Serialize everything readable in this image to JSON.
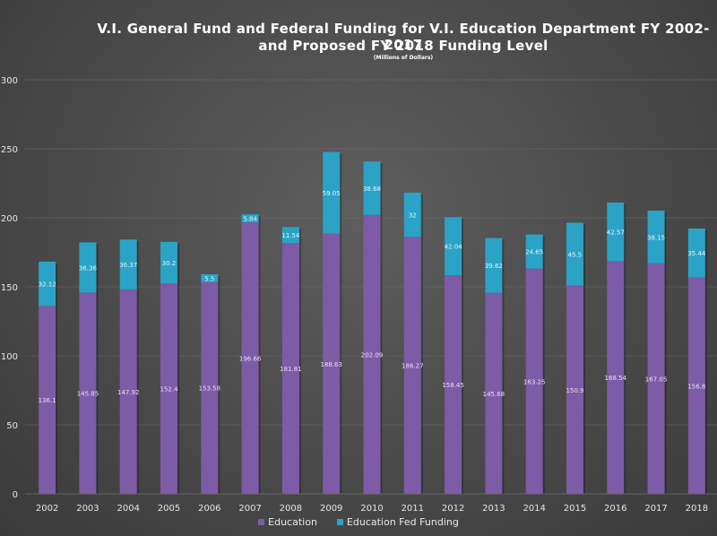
{
  "chart_data": {
    "type": "bar",
    "stacked": true,
    "title": "V.I. General Fund and Federal Funding for V.I. Education Department FY 2002-2017",
    "title_line2": "and Proposed FY 2018 Funding Level",
    "subtitle": "(Millions  of Dollars)",
    "categories": [
      "2002",
      "2003",
      "2004",
      "2005",
      "2006",
      "2007",
      "2008",
      "2009",
      "2010",
      "2011",
      "2012",
      "2013",
      "2014",
      "2015",
      "2016",
      "2017",
      "2018"
    ],
    "series": [
      {
        "name": "Education",
        "color": "#7d5ba6",
        "values": [
          136.1,
          145.85,
          147.92,
          152.4,
          153.58,
          196.66,
          181.81,
          188.63,
          202.09,
          186.27,
          158.45,
          145.68,
          163.25,
          150.9,
          168.54,
          167.05,
          156.8
        ],
        "labels": [
          "136.1",
          "145.85",
          "147.92",
          "152.4",
          "153.58",
          "196.66",
          "181.81",
          "188.63",
          "202.09",
          "186.27",
          "158.45",
          "145.68",
          "163.25",
          "150.9",
          "168.54",
          "167.05",
          "156.8"
        ]
      },
      {
        "name": "Education Fed Funding",
        "color": "#2aa3c6",
        "values": [
          32.12,
          36.36,
          36.37,
          30.2,
          5.5,
          5.84,
          11.54,
          59.05,
          38.68,
          32,
          42.04,
          39.62,
          24.65,
          45.5,
          42.57,
          38.15,
          35.44
        ],
        "labels": [
          "32.12",
          "36.36",
          "36.37",
          "30.2",
          "5.5",
          "5.84",
          "11.54",
          "59.05",
          "38.68",
          "32",
          "42.04",
          "39.62",
          "24.65",
          "45.5",
          "42.57",
          "38.15",
          "35.44"
        ]
      }
    ],
    "ylim": [
      0,
      300
    ],
    "yticks": [
      "0",
      "50",
      "100",
      "150",
      "200",
      "250",
      "300"
    ],
    "grid": true,
    "legend_position": "bottom"
  }
}
